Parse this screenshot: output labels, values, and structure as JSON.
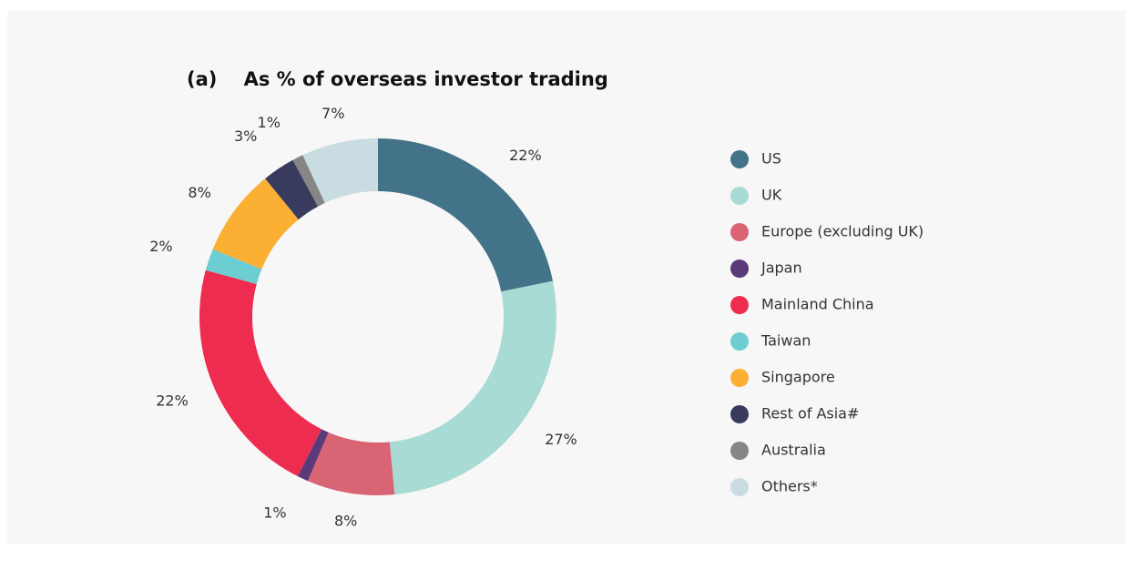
{
  "chart_data": {
    "type": "donut",
    "title": "(a)    As % of overseas investor trading",
    "categories": [
      "US",
      "UK",
      "Europe (excluding UK)",
      "Japan",
      "Mainland China",
      "Taiwan",
      "Singapore",
      "Rest of Asia#",
      "Australia",
      "Others*"
    ],
    "values": [
      22,
      27,
      8,
      1,
      22,
      2,
      8,
      3,
      1,
      7
    ],
    "value_labels": [
      "22%",
      "27%",
      "8%",
      "1%",
      "22%",
      "2%",
      "8%",
      "3%",
      "1%",
      "7%"
    ],
    "colors": [
      "#437389",
      "#a8dbd4",
      "#d86474",
      "#5b3a7a",
      "#ee2c50",
      "#6ccdd2",
      "#fbb034",
      "#383b5e",
      "#868686",
      "#c9dce2"
    ],
    "legend": "right"
  }
}
